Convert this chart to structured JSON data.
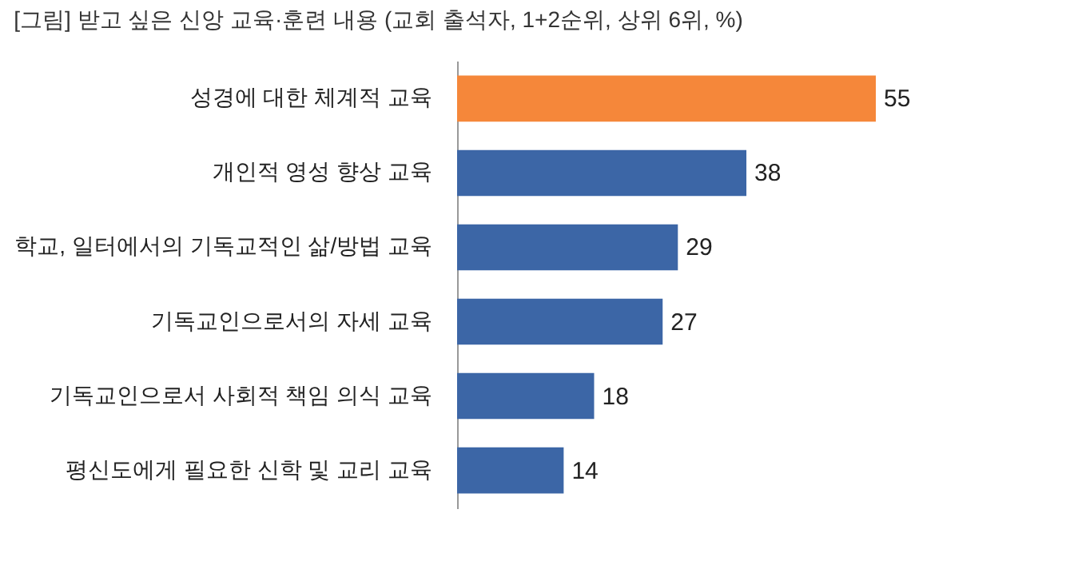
{
  "chart_data": {
    "type": "bar",
    "orientation": "horizontal",
    "title": "[그림] 받고 싶은 신앙 교육·훈련 내용 (교회 출석자, 1+2순위, 상위 6위, %)",
    "categories": [
      "성경에 대한 체계적 교육",
      "개인적 영성 향상 교육",
      "학교, 일터에서의 기독교적인 삶/방법 교육",
      "기독교인으로서의 자세 교육",
      "기독교인으로서 사회적 책임 의식 교육",
      "평신도에게 필요한 신학 및 교리 교육"
    ],
    "values": [
      55,
      38,
      29,
      27,
      18,
      14
    ],
    "colors": [
      "#f5873a",
      "#3c66a6",
      "#3c66a6",
      "#3c66a6",
      "#3c66a6",
      "#3c66a6"
    ],
    "data_labels": true
  }
}
